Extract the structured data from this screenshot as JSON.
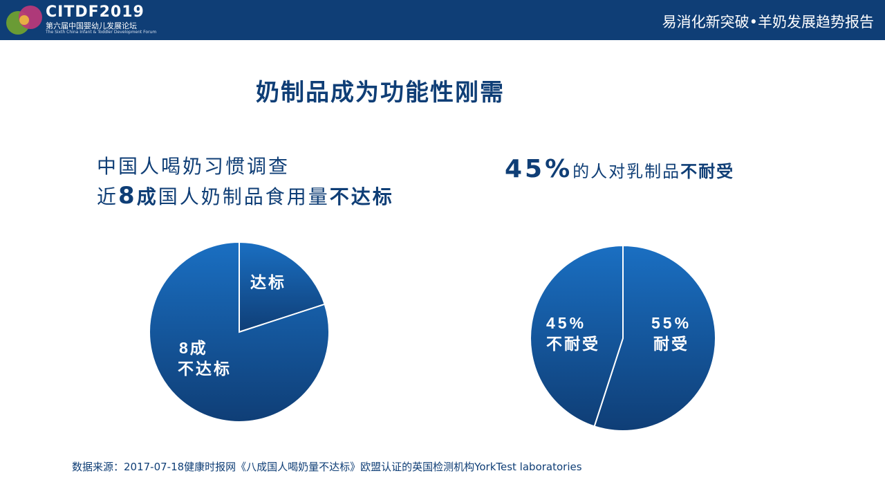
{
  "header": {
    "logo_main": "CITDF2019",
    "logo_cn": "第六届中国婴幼儿发展论坛",
    "logo_en": "The Sixth China Infant & Toddler Development Forum",
    "title": "易消化新突破•羊奶发展趋势报告"
  },
  "main_title": "奶制品成为功能性刚需",
  "left_block": {
    "line1": "中国人喝奶习惯调查",
    "line2_prefix": "近",
    "line2_num": "8",
    "line2_cheng": "成",
    "line2_mid": "国人奶制品食用量",
    "line2_bold": "不达标"
  },
  "right_block": {
    "pct": "45%",
    "mid": "的人对乳制品",
    "bold": "不耐受"
  },
  "chart_data": [
    {
      "type": "pie",
      "slices": [
        {
          "label": "达标",
          "value": 20
        },
        {
          "label": "8成 不达标",
          "value": 80
        }
      ]
    },
    {
      "type": "pie",
      "slices": [
        {
          "label": "55% 耐受",
          "value": 55
        },
        {
          "label": "45% 不耐受",
          "value": 45
        }
      ]
    }
  ],
  "pie1_labels": {
    "a": "达标",
    "b1": "8成",
    "b2": "不达标"
  },
  "pie2_labels": {
    "a1": "55%",
    "a2": "耐受",
    "b1": "45%",
    "b2": "不耐受"
  },
  "colors": {
    "navy": "#0f3e76",
    "pie_light": "#1a6fc2",
    "pie_dark": "#0f3e76"
  },
  "footer": "数据来源：2017-07-18健康时报网《八成国人喝奶量不达标》欧盟认证的英国检测机构YorkTest  laboratories"
}
